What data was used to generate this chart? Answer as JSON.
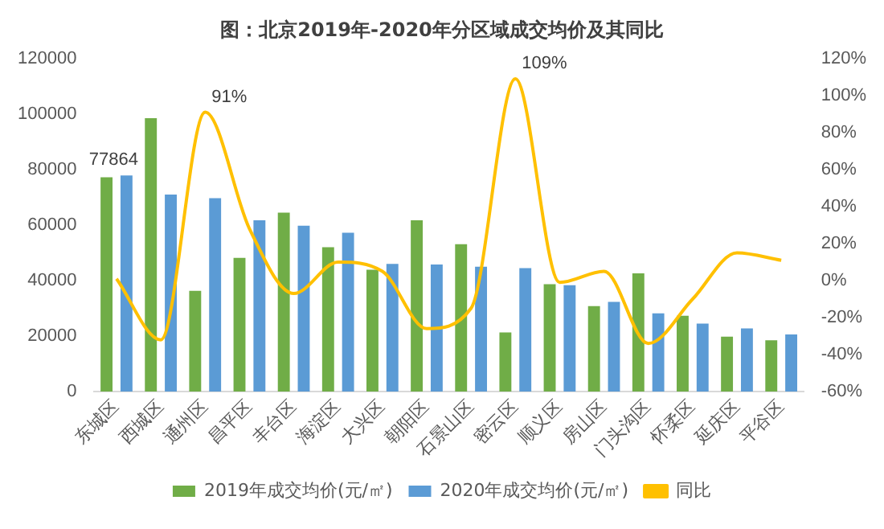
{
  "chart_data": {
    "type": "bar",
    "title": "图：北京2019年-2020年分区域成交均价及其同比",
    "categories": [
      "东城区",
      "西城区",
      "通州区",
      "昌平区",
      "丰台区",
      "海淀区",
      "大兴区",
      "朝阳区",
      "石景山区",
      "密云区",
      "顺义区",
      "房山区",
      "门头沟区",
      "怀柔区",
      "延庆区",
      "平谷区"
    ],
    "series": [
      {
        "name": "2019年成交均价(元/㎡)",
        "color": "#70ad47",
        "values": [
          77200,
          98500,
          36300,
          48200,
          64500,
          52000,
          43900,
          61700,
          53100,
          21300,
          38700,
          30800,
          42600,
          27300,
          19800,
          18500
        ]
      },
      {
        "name": "2020年成交均价(元/㎡)",
        "color": "#5b9bd5",
        "values": [
          77864,
          71000,
          69700,
          61700,
          59800,
          57200,
          46000,
          45800,
          45000,
          44500,
          38300,
          32300,
          28200,
          24500,
          22800,
          20600
        ],
        "value_labels": [
          "77864",
          null,
          null,
          null,
          null,
          null,
          null,
          null,
          null,
          null,
          null,
          null,
          null,
          null,
          null,
          null
        ]
      },
      {
        "name": "同比",
        "type": "line",
        "axis": "y2",
        "color": "#ffc000",
        "values": [
          1,
          -32,
          91,
          28,
          -7,
          10,
          5,
          -26,
          -15,
          109,
          -1,
          5,
          -34,
          -10,
          15,
          11
        ],
        "value_labels": [
          null,
          null,
          "91%",
          null,
          null,
          null,
          null,
          null,
          null,
          "109%",
          null,
          null,
          null,
          null,
          null,
          null
        ]
      }
    ],
    "ylim": [
      0,
      120000
    ],
    "yticks": [
      0,
      20000,
      40000,
      60000,
      80000,
      100000,
      120000
    ],
    "y2lim": [
      -60,
      120
    ],
    "y2ticks": [
      {
        "value": -60,
        "label": "-60%"
      },
      {
        "value": -40,
        "label": "-40%"
      },
      {
        "value": -20,
        "label": "-20%"
      },
      {
        "value": 0,
        "label": "0%"
      },
      {
        "value": 20,
        "label": "20%"
      },
      {
        "value": 40,
        "label": "40%"
      },
      {
        "value": 60,
        "label": "60%"
      },
      {
        "value": 80,
        "label": "80%"
      },
      {
        "value": 100,
        "label": "100%"
      },
      {
        "value": 120,
        "label": "120%"
      }
    ],
    "grid": false,
    "legend": "bottom",
    "marker": "none"
  }
}
